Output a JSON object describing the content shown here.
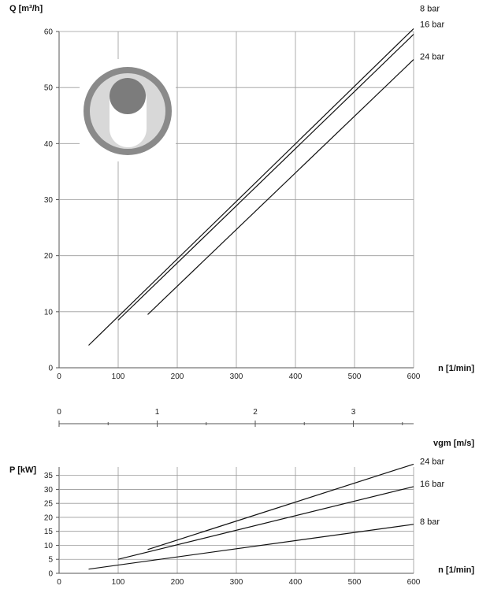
{
  "chart_data": [
    {
      "type": "line",
      "title": "",
      "ylabel": "Q [m³/h]",
      "xlabel": "n [1/min]",
      "xlim": [
        0,
        600
      ],
      "ylim": [
        0,
        60
      ],
      "x_ticks": [
        0,
        100,
        200,
        300,
        400,
        500,
        600
      ],
      "y_ticks": [
        0,
        10,
        20,
        30,
        40,
        50,
        60
      ],
      "grid": true,
      "series": [
        {
          "name": "8 bar",
          "x": [
            50,
            600
          ],
          "y": [
            4,
            60.5
          ]
        },
        {
          "name": "16 bar",
          "x": [
            100,
            600
          ],
          "y": [
            8.5,
            59.5
          ]
        },
        {
          "name": "24 bar",
          "x": [
            150,
            600
          ],
          "y": [
            9.5,
            55
          ]
        }
      ]
    },
    {
      "type": "axis",
      "xlabel": "vgm [m/s]",
      "ticks": [
        {
          "label": "0",
          "n": 0
        },
        {
          "label": "1",
          "n": 166
        },
        {
          "label": "2",
          "n": 332
        },
        {
          "label": "3",
          "n": 498
        }
      ],
      "minor_ticks_n": [
        83,
        249,
        415,
        581
      ]
    },
    {
      "type": "line",
      "title": "",
      "ylabel": "P [kW]",
      "xlabel": "n [1/min]",
      "xlim": [
        0,
        600
      ],
      "ylim": [
        0,
        38
      ],
      "x_ticks": [
        0,
        100,
        200,
        300,
        400,
        500,
        600
      ],
      "y_ticks": [
        0,
        5,
        10,
        15,
        20,
        25,
        30,
        35
      ],
      "grid": true,
      "series": [
        {
          "name": "24 bar",
          "x": [
            150,
            600
          ],
          "y": [
            8.5,
            39
          ]
        },
        {
          "name": "16 bar",
          "x": [
            100,
            600
          ],
          "y": [
            5,
            31
          ]
        },
        {
          "name": "8 bar",
          "x": [
            50,
            600
          ],
          "y": [
            1.5,
            17.5
          ]
        }
      ]
    }
  ],
  "colors": {
    "line": "#111111",
    "grid": "#9a9a9a",
    "logo_ring": "#8a8a8a",
    "logo_fill": "#d8d8d8",
    "logo_ball": "#7c7c7c"
  },
  "icons": {
    "valve": "valve-cross-section-icon"
  }
}
